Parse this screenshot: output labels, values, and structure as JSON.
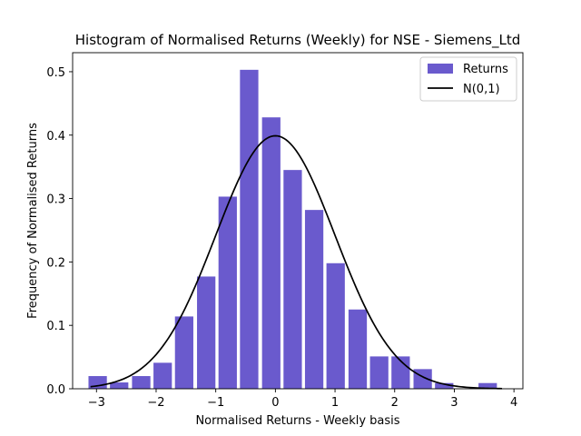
{
  "chart_data": {
    "type": "bar",
    "title": "Histogram of Normalised Returns (Weekly) for NSE - Siemens_Ltd",
    "xlabel": "Normalised Returns - Weekly basis",
    "ylabel": "Frequency of Normalised Returns",
    "xlim": [
      -3.4,
      4.15
    ],
    "ylim": [
      0,
      0.53
    ],
    "xticks": [
      -3,
      -2,
      -1,
      0,
      1,
      2,
      3,
      4
    ],
    "xtick_labels": [
      "−3",
      "−2",
      "−1",
      "0",
      "1",
      "2",
      "3",
      "4"
    ],
    "yticks": [
      0,
      0.1,
      0.2,
      0.3,
      0.4,
      0.5
    ],
    "ytick_labels": [
      "0.0",
      "0.1",
      "0.2",
      "0.3",
      "0.4",
      "0.5"
    ],
    "bin_width": 0.3625,
    "bar_fraction": 0.85,
    "bins": [
      {
        "center": -2.98,
        "value": 0.02
      },
      {
        "center": -2.62,
        "value": 0.01
      },
      {
        "center": -2.25,
        "value": 0.02
      },
      {
        "center": -1.89,
        "value": 0.041
      },
      {
        "center": -1.53,
        "value": 0.114
      },
      {
        "center": -1.16,
        "value": 0.177
      },
      {
        "center": -0.8,
        "value": 0.303
      },
      {
        "center": -0.44,
        "value": 0.503
      },
      {
        "center": -0.07,
        "value": 0.428
      },
      {
        "center": 0.29,
        "value": 0.345
      },
      {
        "center": 0.65,
        "value": 0.282
      },
      {
        "center": 1.01,
        "value": 0.198
      },
      {
        "center": 1.38,
        "value": 0.125
      },
      {
        "center": 1.74,
        "value": 0.051
      },
      {
        "center": 2.1,
        "value": 0.051
      },
      {
        "center": 2.47,
        "value": 0.031
      },
      {
        "center": 2.83,
        "value": 0.009
      },
      {
        "center": 3.56,
        "value": 0.009
      }
    ],
    "curve": {
      "name": "N(0,1)",
      "x_range": [
        -3.1,
        3.8
      ],
      "mean": 0,
      "sd": 1
    },
    "legend": {
      "position": "top-right",
      "entries": [
        {
          "label": "Returns"
        },
        {
          "label": "N(0,1)"
        }
      ]
    },
    "colors": {
      "bars": "#6a5acd",
      "curve": "#000000"
    },
    "grid": false
  }
}
